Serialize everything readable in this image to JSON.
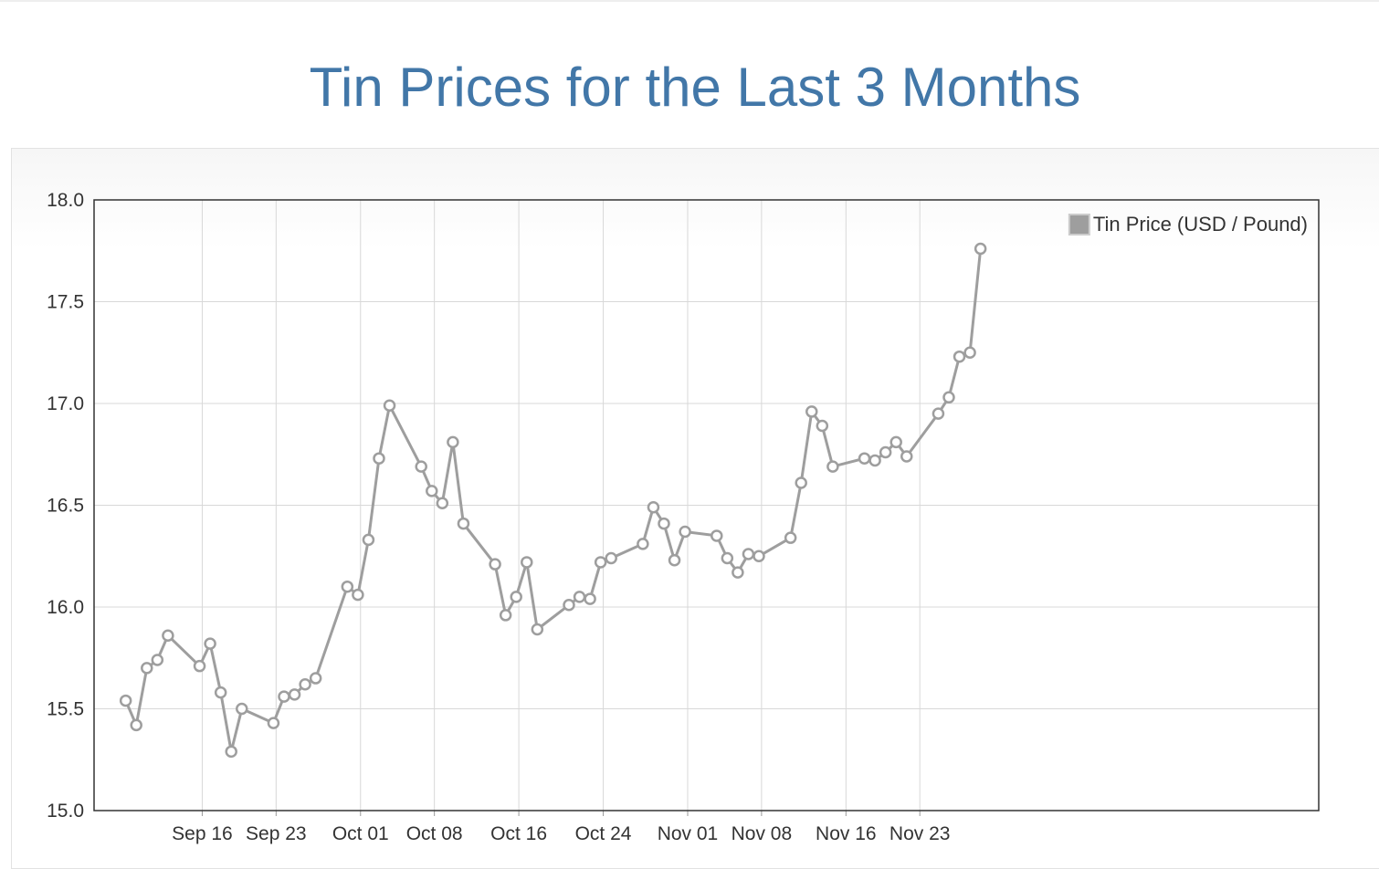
{
  "page": {
    "title": "Tin Prices for the Last 3 Months"
  },
  "colors": {
    "title": "#4277a8",
    "series": "#9e9e9e",
    "grid": "#d8d8d8",
    "axis": "#333333"
  },
  "chart_data": {
    "type": "line",
    "title": "Tin Prices for the Last 3 Months",
    "xlabel": "",
    "ylabel": "",
    "ylim": [
      15.0,
      18.0
    ],
    "yticks": [
      "15.0",
      "15.5",
      "16.0",
      "16.5",
      "17.0",
      "17.5",
      "18.0"
    ],
    "xlim": [
      -7.25,
      108.8
    ],
    "xticks": [
      {
        "label": "Sep 16",
        "day": 3
      },
      {
        "label": "Sep 23",
        "day": 10
      },
      {
        "label": "Oct 01",
        "day": 18
      },
      {
        "label": "Oct 08",
        "day": 25
      },
      {
        "label": "Oct 16",
        "day": 33
      },
      {
        "label": "Oct 24",
        "day": 41
      },
      {
        "label": "Nov 01",
        "day": 49
      },
      {
        "label": "Nov 08",
        "day": 56
      },
      {
        "label": "Nov 16",
        "day": 64
      },
      {
        "label": "Nov 23",
        "day": 71
      }
    ],
    "grid": true,
    "legend_position": "top-right",
    "series": [
      {
        "name": "Tin Price (USD / Pound)",
        "points": [
          [
            -4.25,
            15.54
          ],
          [
            -3.25,
            15.42
          ],
          [
            -2.25,
            15.7
          ],
          [
            -1.25,
            15.74
          ],
          [
            -0.25,
            15.86
          ],
          [
            2.75,
            15.71
          ],
          [
            3.75,
            15.82
          ],
          [
            4.75,
            15.58
          ],
          [
            5.75,
            15.29
          ],
          [
            6.75,
            15.5
          ],
          [
            9.75,
            15.43
          ],
          [
            10.75,
            15.56
          ],
          [
            11.75,
            15.57
          ],
          [
            12.75,
            15.62
          ],
          [
            13.75,
            15.65
          ],
          [
            16.75,
            16.1
          ],
          [
            17.75,
            16.06
          ],
          [
            18.75,
            16.33
          ],
          [
            19.75,
            16.73
          ],
          [
            20.75,
            16.99
          ],
          [
            23.75,
            16.69
          ],
          [
            24.75,
            16.57
          ],
          [
            25.75,
            16.51
          ],
          [
            26.75,
            16.81
          ],
          [
            27.75,
            16.41
          ],
          [
            30.75,
            16.21
          ],
          [
            31.75,
            15.96
          ],
          [
            32.75,
            16.05
          ],
          [
            33.75,
            16.22
          ],
          [
            34.75,
            15.89
          ],
          [
            37.75,
            16.01
          ],
          [
            38.75,
            16.05
          ],
          [
            39.75,
            16.04
          ],
          [
            40.75,
            16.22
          ],
          [
            41.75,
            16.24
          ],
          [
            44.75,
            16.31
          ],
          [
            45.75,
            16.49
          ],
          [
            46.75,
            16.41
          ],
          [
            47.75,
            16.23
          ],
          [
            48.75,
            16.37
          ],
          [
            51.75,
            16.35
          ],
          [
            52.75,
            16.24
          ],
          [
            53.75,
            16.17
          ],
          [
            54.75,
            16.26
          ],
          [
            55.75,
            16.25
          ],
          [
            58.75,
            16.34
          ],
          [
            59.75,
            16.61
          ],
          [
            60.75,
            16.96
          ],
          [
            61.75,
            16.89
          ],
          [
            62.75,
            16.69
          ],
          [
            65.75,
            16.73
          ],
          [
            66.75,
            16.72
          ],
          [
            67.75,
            16.76
          ],
          [
            68.75,
            16.81
          ],
          [
            69.75,
            16.74
          ],
          [
            72.75,
            16.95
          ],
          [
            73.75,
            17.03
          ],
          [
            74.75,
            17.23
          ],
          [
            75.75,
            17.25
          ],
          [
            76.75,
            17.76
          ]
        ]
      }
    ]
  }
}
